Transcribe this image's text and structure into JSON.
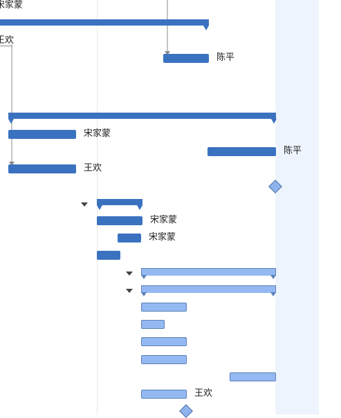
{
  "labels": {
    "r0": "宋家蒙",
    "r2": "王欢",
    "r3": "陈平",
    "r6": "宋家蒙",
    "r7": "陈平",
    "r8": "王欢",
    "r12": "宋家蒙",
    "r13": "宋家蒙",
    "r23": "王欢"
  },
  "colors": {
    "bar_dark": "#3a72c0",
    "bar_light": "#94b9f2",
    "weekend": "#eef4fd"
  }
}
